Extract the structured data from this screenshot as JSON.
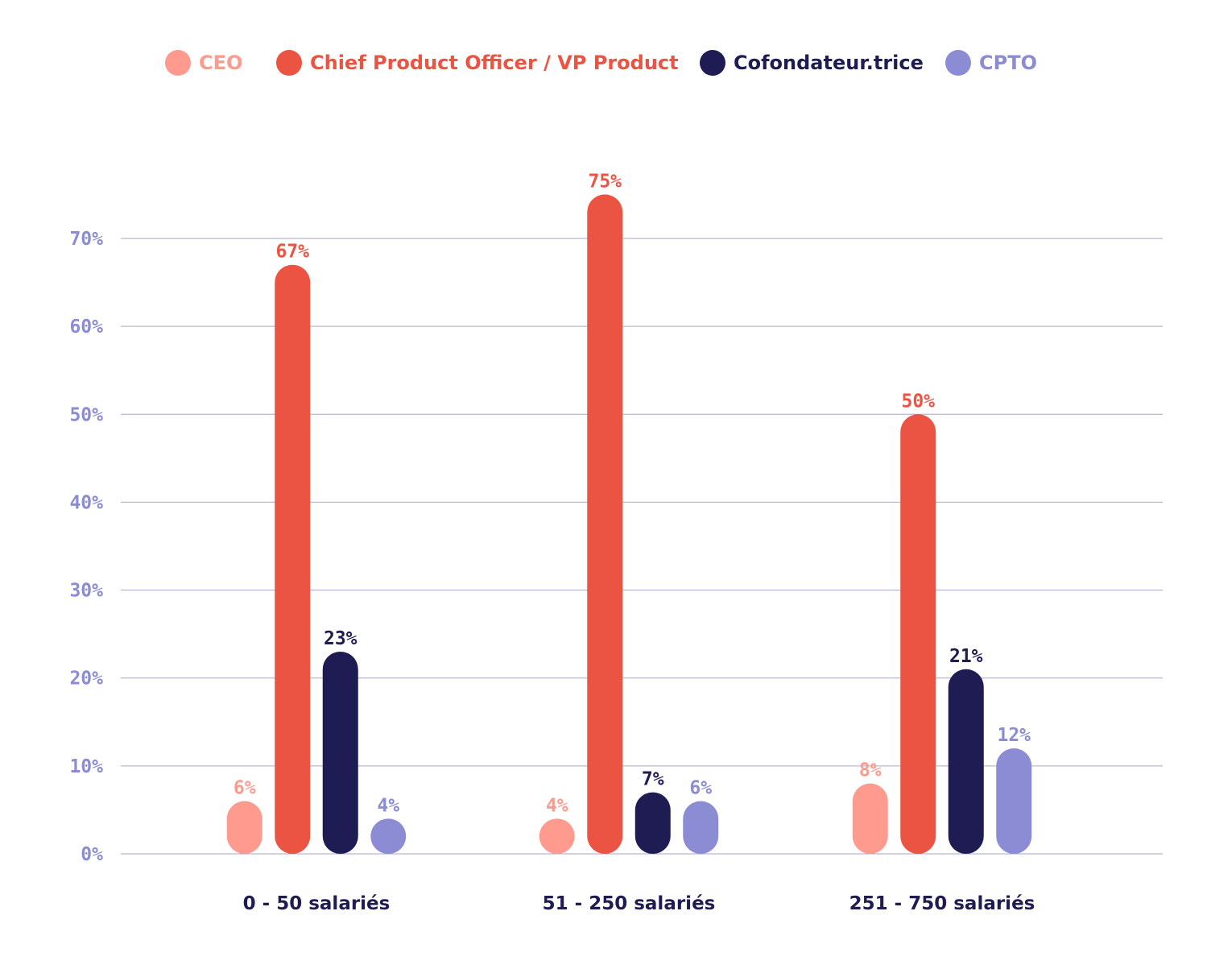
{
  "chart_data": {
    "type": "bar",
    "title": "",
    "xlabel": "",
    "ylabel": "",
    "categories": [
      "0 - 50 salariés",
      "51 - 250 salariés",
      "251 - 750 salariés"
    ],
    "series": [
      {
        "name": "CEO",
        "color": "#FF9B8E",
        "values": [
          6,
          4,
          8
        ],
        "labels": [
          "6%",
          "4%",
          "8%"
        ]
      },
      {
        "name": "Chief Product Officer / VP Product",
        "color": "#EB5342",
        "values": [
          67,
          75,
          50
        ],
        "labels": [
          "67%",
          "75%",
          "50%"
        ]
      },
      {
        "name": "Cofondateur.trice",
        "color": "#1E1C52",
        "values": [
          23,
          7,
          21
        ],
        "labels": [
          "23%",
          "7%",
          "21%"
        ]
      },
      {
        "name": "CPTO",
        "color": "#8C8CD4",
        "values": [
          4,
          6,
          12
        ],
        "labels": [
          "4%",
          "6%",
          "12%"
        ]
      }
    ],
    "ylim": [
      0,
      70
    ],
    "yticks": [
      0,
      10,
      20,
      30,
      40,
      50,
      60,
      70
    ],
    "ytick_labels": [
      "0%",
      "10%",
      "20%",
      "30%",
      "40%",
      "50%",
      "60%",
      "70%"
    ],
    "grid": true,
    "legend_position": "top",
    "colors": {
      "gridline": "#A6A6C9",
      "axis_tick_text": "#8C8CD4",
      "category_text": "#1E1C52"
    }
  }
}
